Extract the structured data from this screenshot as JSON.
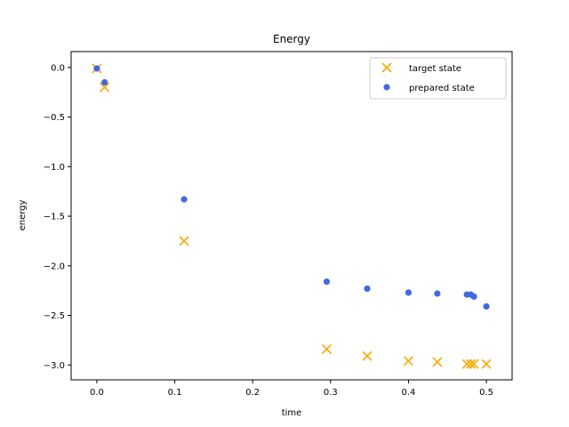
{
  "chart_data": {
    "type": "scatter",
    "title": "Energy",
    "xlabel": "time",
    "ylabel": "energy",
    "xlim": [
      -0.033,
      0.533
    ],
    "ylim": [
      -3.15,
      0.16
    ],
    "xticks": [
      0.0,
      0.1,
      0.2,
      0.3,
      0.4,
      0.5
    ],
    "xtick_labels": [
      "0.0",
      "0.1",
      "0.2",
      "0.3",
      "0.4",
      "0.5"
    ],
    "yticks": [
      0.0,
      -0.5,
      -1.0,
      -1.5,
      -2.0,
      -2.5,
      -3.0
    ],
    "ytick_labels": [
      "0.0",
      "−0.5",
      "−1.0",
      "−1.5",
      "−2.0",
      "−2.5",
      "−3.0"
    ],
    "grid": false,
    "legend_position": "top-right",
    "series": [
      {
        "name": "target state",
        "marker": "x",
        "color": "#ffa500",
        "x": [
          0.0,
          0.01,
          0.112,
          0.295,
          0.347,
          0.4,
          0.437,
          0.475,
          0.48,
          0.484,
          0.5
        ],
        "y": [
          -0.01,
          -0.2,
          -1.75,
          -2.84,
          -2.91,
          -2.96,
          -2.97,
          -2.99,
          -2.99,
          -2.99,
          -2.99
        ]
      },
      {
        "name": "prepared state",
        "marker": "o",
        "color": "#4169e1",
        "x": [
          0.0,
          0.01,
          0.112,
          0.295,
          0.347,
          0.4,
          0.437,
          0.475,
          0.48,
          0.484,
          0.5
        ],
        "y": [
          -0.01,
          -0.15,
          -1.33,
          -2.16,
          -2.23,
          -2.27,
          -2.28,
          -2.29,
          -2.29,
          -2.31,
          -2.41
        ]
      }
    ]
  }
}
